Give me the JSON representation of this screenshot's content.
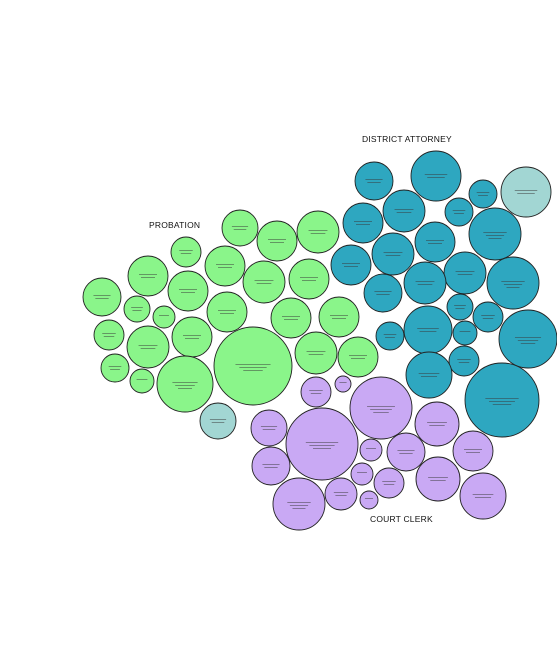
{
  "colors": {
    "probation": "#8af58a",
    "district_attorney": "#2ea7c0",
    "court_clerk": "#c9a9f4",
    "shared": "#a2d6d3",
    "stroke": "#222222"
  },
  "groups": [
    {
      "id": "probation",
      "label": "PROBATION"
    },
    {
      "id": "district_attorney",
      "label": "DISTRICT ATTORNEY"
    },
    {
      "id": "court_clerk",
      "label": "COURT CLERK"
    }
  ]
}
